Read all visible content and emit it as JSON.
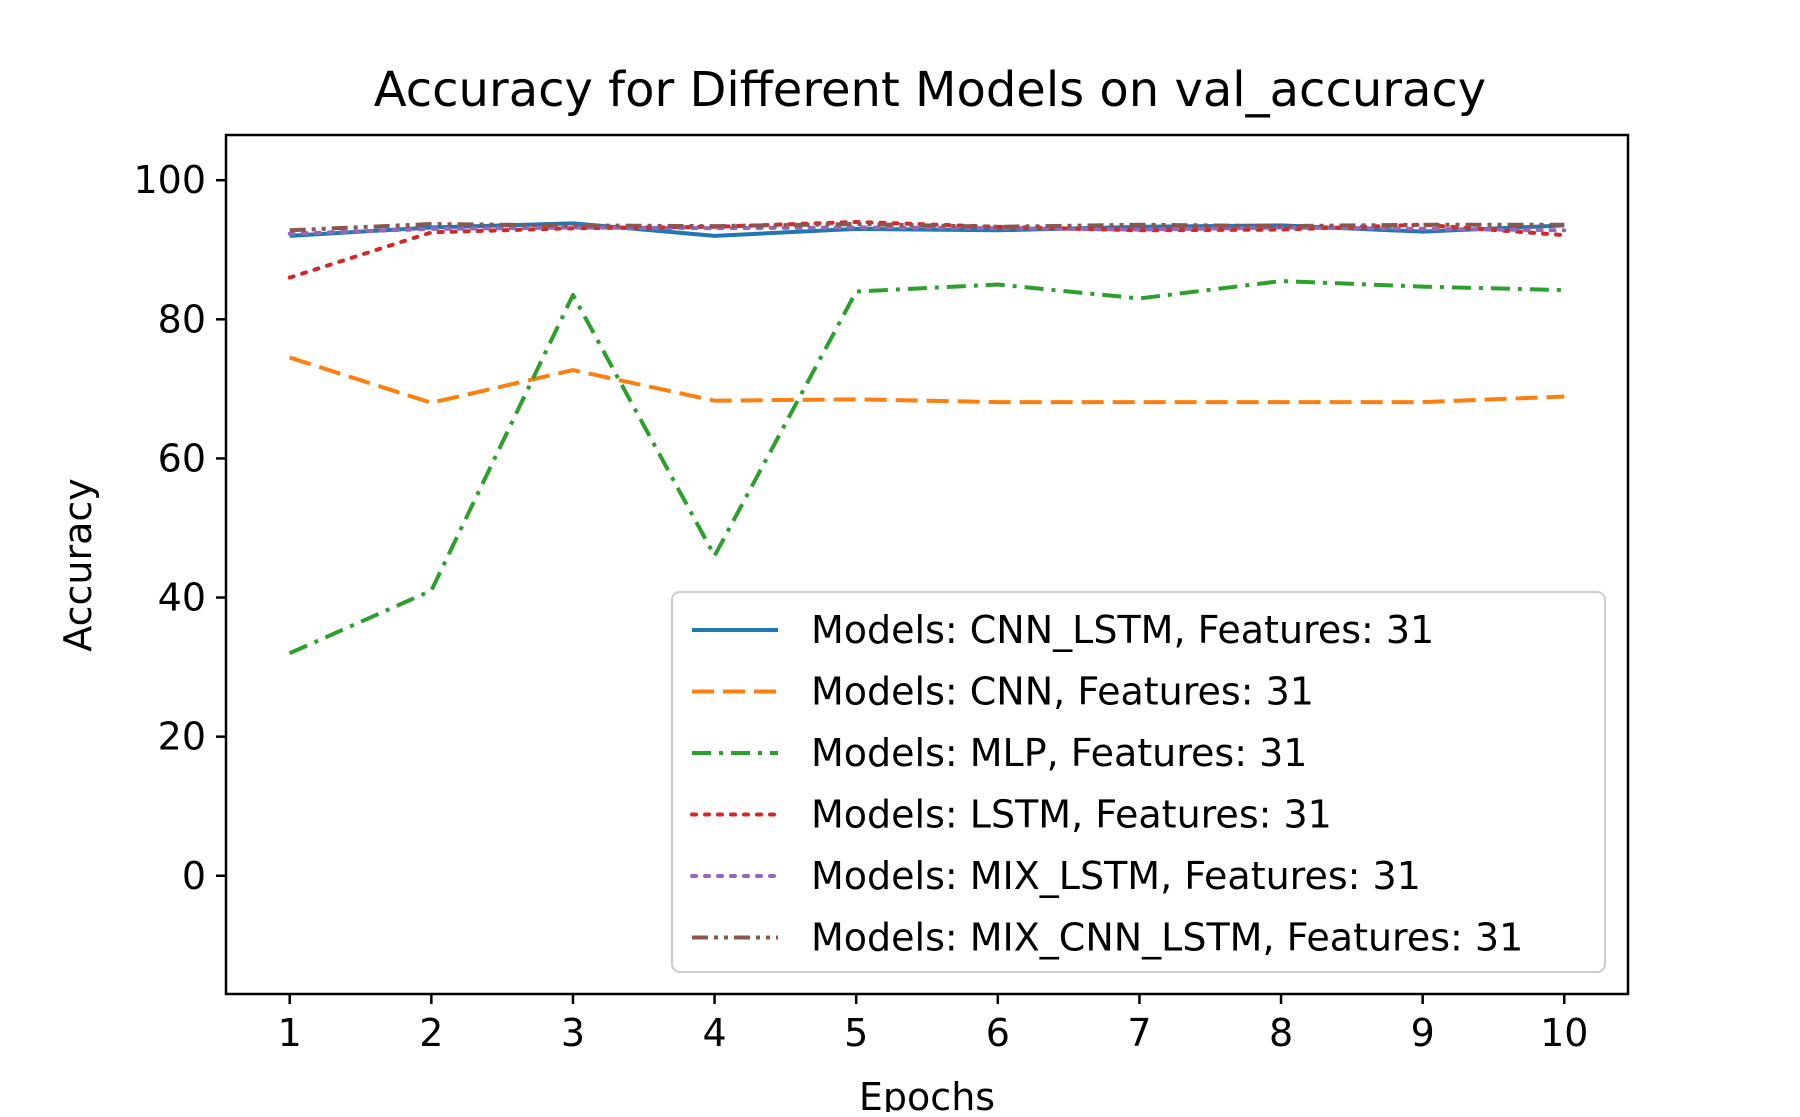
{
  "chart_data": {
    "type": "line",
    "title": "Accuracy for Different Models on val_accuracy",
    "xlabel": "Epochs",
    "ylabel": "Accuracy",
    "x": [
      1,
      2,
      3,
      4,
      5,
      6,
      7,
      8,
      9,
      10
    ],
    "xticks": [
      "1",
      "2",
      "3",
      "4",
      "5",
      "6",
      "7",
      "8",
      "9",
      "10"
    ],
    "yticks": [
      "0",
      "20",
      "40",
      "60",
      "80",
      "100"
    ],
    "ytick_values": [
      0,
      20,
      40,
      60,
      80,
      100
    ],
    "xlim": [
      0.55,
      10.45
    ],
    "ylim": [
      -17,
      106.5
    ],
    "grid": false,
    "legend_position": "lower-right",
    "series": [
      {
        "name": "Models: CNN_LSTM, Features: 31",
        "color": "#1f77b4",
        "style": "solid",
        "values": [
          92.0,
          93.2,
          93.8,
          92.0,
          93.0,
          92.8,
          93.3,
          93.5,
          92.6,
          93.5
        ]
      },
      {
        "name": "Models: CNN, Features: 31",
        "color": "#ff7f0e",
        "style": "dashed",
        "values": [
          74.5,
          68.0,
          72.7,
          68.3,
          68.5,
          68.1,
          68.1,
          68.1,
          68.1,
          68.9
        ]
      },
      {
        "name": "Models: MLP, Features: 31",
        "color": "#2ca02c",
        "style": "dashdot",
        "values": [
          32.0,
          41.0,
          83.5,
          46.0,
          84.0,
          85.0,
          83.0,
          85.5,
          84.7,
          84.2
        ]
      },
      {
        "name": "Models: LSTM, Features: 31",
        "color": "#d62728",
        "style": "dotted",
        "values": [
          86.0,
          92.5,
          93.1,
          93.3,
          94.0,
          93.3,
          92.8,
          92.9,
          93.6,
          92.1
        ]
      },
      {
        "name": "Models: MIX_LSTM, Features: 31",
        "color": "#9467bd",
        "style": "dotted",
        "values": [
          92.3,
          93.0,
          93.2,
          93.1,
          93.2,
          93.1,
          92.9,
          93.2,
          93.0,
          92.8
        ]
      },
      {
        "name": "Models: MIX_CNN_LSTM, Features: 31",
        "color": "#8c564b",
        "style": "dashdotdot",
        "values": [
          92.8,
          93.7,
          93.5,
          93.4,
          93.7,
          93.3,
          93.6,
          93.4,
          93.6,
          93.6
        ]
      }
    ]
  }
}
